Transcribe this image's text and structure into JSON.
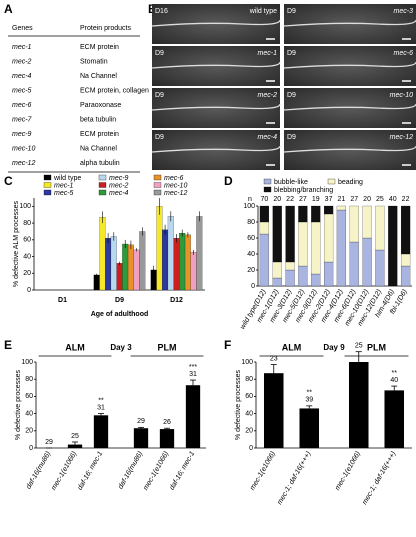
{
  "panel_a": {
    "label": "A",
    "header": [
      "Genes",
      "Protein products"
    ],
    "rows": [
      [
        "mec-1",
        "ECM protein"
      ],
      [
        "mec-2",
        "Stomatin"
      ],
      [
        "mec-4",
        "Na Channel"
      ],
      [
        "mec-5",
        "ECM protein, collagen"
      ],
      [
        "mec-6",
        "Paraoxonase"
      ],
      [
        "mec-7",
        "beta tubulin"
      ],
      [
        "mec-9",
        "ECM protein"
      ],
      [
        "mec-10",
        "Na Channel"
      ],
      [
        "mec-12",
        "alpha tubulin"
      ]
    ]
  },
  "panel_b": {
    "label": "B",
    "images": [
      {
        "day": "D16",
        "genotype": "wild type"
      },
      {
        "day": "D9",
        "genotype": "mec-3"
      },
      {
        "day": "D9",
        "genotype": "mec-1"
      },
      {
        "day": "D9",
        "genotype": "mec-6"
      },
      {
        "day": "D9",
        "genotype": "mec-2"
      },
      {
        "day": "D9",
        "genotype": "mec-10"
      },
      {
        "day": "D9",
        "genotype": "mec-4"
      },
      {
        "day": "D9",
        "genotype": "mec-12"
      }
    ]
  },
  "chart_data": [
    {
      "panel": "C",
      "type": "grouped_bar",
      "ylabel": "% defective ALM processes",
      "xlabel": "Age of adulthood",
      "categories": [
        "D1",
        "D9",
        "D12"
      ],
      "ylim": [
        0,
        110
      ],
      "yticks": [
        0,
        20,
        40,
        60,
        80,
        100
      ],
      "series": [
        {
          "name": "wild type",
          "color": "#000000",
          "values": [
            0,
            18,
            24
          ],
          "errors": [
            0,
            1.5,
            5
          ]
        },
        {
          "name": "mec-1",
          "color": "#f5e829",
          "values": [
            0,
            87,
            100
          ],
          "errors": [
            0,
            7,
            10
          ]
        },
        {
          "name": "mec-5",
          "color": "#2b3a9c",
          "values": [
            0,
            62,
            72
          ],
          "errors": [
            0,
            6,
            6
          ]
        },
        {
          "name": "mec-9",
          "color": "#b8d8f0",
          "values": [
            0,
            64,
            88
          ],
          "errors": [
            0,
            5,
            6
          ]
        },
        {
          "name": "mec-2",
          "color": "#cc1f1f",
          "values": [
            0,
            32,
            62
          ],
          "errors": [
            0,
            2,
            5
          ]
        },
        {
          "name": "mec-4",
          "color": "#2e9a3a",
          "values": [
            0,
            55,
            68
          ],
          "errors": [
            0,
            5,
            4
          ]
        },
        {
          "name": "mec-6",
          "color": "#e8922a",
          "values": [
            0,
            54,
            66
          ],
          "errors": [
            0,
            5,
            3
          ]
        },
        {
          "name": "mec-10",
          "color": "#f0a0c0",
          "values": [
            0,
            48,
            45
          ],
          "errors": [
            0,
            2,
            3
          ]
        },
        {
          "name": "mec-12",
          "color": "#999999",
          "values": [
            0,
            70,
            88
          ],
          "errors": [
            0,
            5,
            6
          ]
        }
      ]
    },
    {
      "panel": "D",
      "type": "stacked_bar",
      "n_label": "n",
      "n": [
        70,
        20,
        22,
        27,
        19,
        37,
        21,
        27,
        20,
        25,
        40,
        22
      ],
      "categories": [
        "wild type(D12)",
        "mec-1(D12)",
        "mec-3(D12)",
        "mec-5(D12)",
        "mec-9(D12)",
        "mec-2(D12)",
        "mec-4(D12)",
        "mec-6(D12)",
        "mec-10(D12)",
        "mec-12(D12)",
        "him-4(D6)",
        "fbl-1(D6)"
      ],
      "ylim": [
        0,
        100
      ],
      "yticks": [
        0,
        20,
        40,
        60,
        80,
        100
      ],
      "series": [
        {
          "name": "bubble-like",
          "color": "#a9b4e0",
          "values": [
            65,
            10,
            20,
            25,
            15,
            30,
            95,
            55,
            60,
            45,
            0,
            25
          ]
        },
        {
          "name": "beading",
          "color": "#f7f3c8",
          "values": [
            15,
            20,
            10,
            55,
            65,
            60,
            5,
            45,
            40,
            55,
            0,
            15
          ]
        },
        {
          "name": "blebbing/branching",
          "color": "#111111",
          "values": [
            20,
            70,
            70,
            20,
            20,
            10,
            0,
            0,
            0,
            0,
            100,
            60
          ]
        }
      ]
    },
    {
      "panel": "E",
      "type": "bar",
      "subtitle": "Day 3",
      "groups": [
        "ALM",
        "PLM"
      ],
      "ylabel": "% defective processes",
      "color": "#000000",
      "categories": [
        "daf-16(mu86)",
        "mec-1(e1066)",
        "daf-16; mec-1",
        "daf-16(mu86)",
        "mec-1(e1066)",
        "daf-16; mec-1"
      ],
      "values": [
        0,
        4,
        38,
        23,
        22,
        73
      ],
      "errors": [
        0,
        3,
        2,
        1,
        1,
        6
      ],
      "n": [
        29,
        25,
        31,
        29,
        26,
        31
      ],
      "significance": [
        null,
        null,
        "**",
        null,
        null,
        "***"
      ],
      "ylim": [
        0,
        100
      ],
      "yticks": [
        0,
        20,
        40,
        60,
        80,
        100
      ]
    },
    {
      "panel": "F",
      "type": "bar",
      "subtitle": "Day 9",
      "groups": [
        "ALM",
        "PLM"
      ],
      "ylabel": "% defective processes",
      "color": "#000000",
      "categories": [
        "mec-1(e1066)",
        "mec-1; daf-16(+++)",
        "mec-1(e1066)",
        "mec-1; daf-16(+++)"
      ],
      "values": [
        87,
        46,
        100,
        67
      ],
      "errors": [
        10,
        3,
        12,
        5
      ],
      "n": [
        23,
        39,
        25,
        40
      ],
      "significance": [
        null,
        "**",
        null,
        "**"
      ],
      "ylim": [
        0,
        100
      ],
      "yticks": [
        0,
        20,
        40,
        60,
        80,
        100
      ]
    }
  ]
}
